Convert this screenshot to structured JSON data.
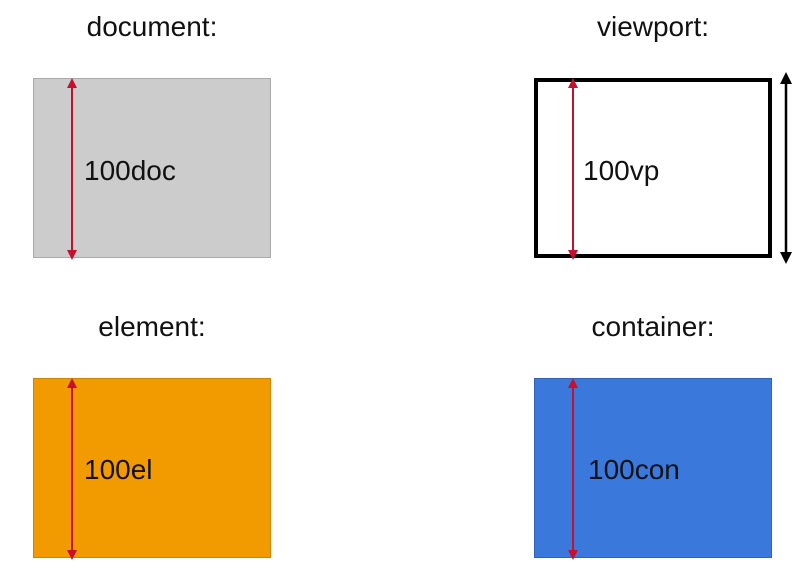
{
  "panels": {
    "document": {
      "title": "document:",
      "value_label": "100doc",
      "fill": "#cccccc"
    },
    "viewport": {
      "title": "viewport:",
      "value_label": "100vp",
      "fill": "#ffffff",
      "border": "#000000"
    },
    "element": {
      "title": "element:",
      "value_label": "100el",
      "fill": "#f29b00"
    },
    "container": {
      "title": "container:",
      "value_label": "100con",
      "fill": "#3b78dc"
    }
  },
  "colors": {
    "measure_arrow": "#c8102e",
    "viewport_arrow": "#000000"
  }
}
